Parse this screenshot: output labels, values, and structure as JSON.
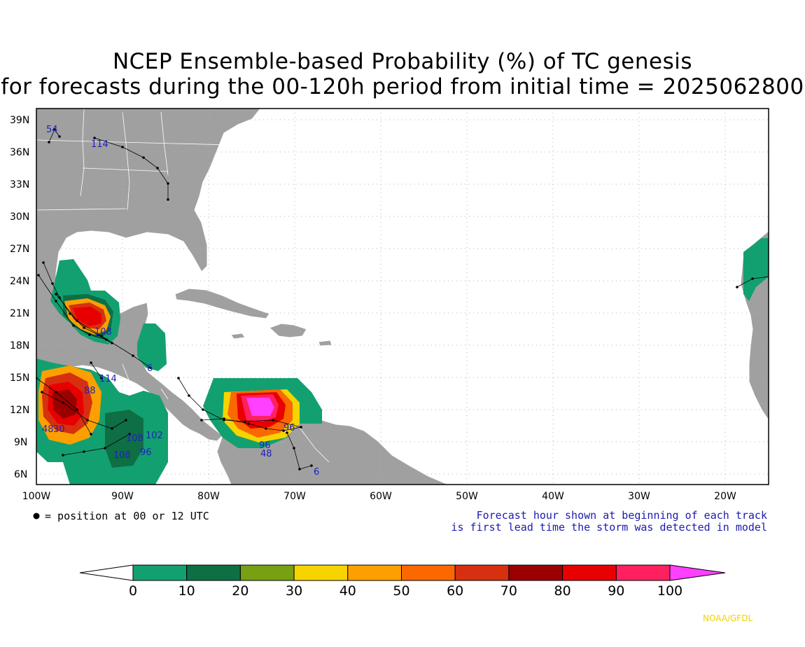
{
  "title": {
    "line1": "NCEP Ensemble-based Probability (%) of TC genesis",
    "line2": "for forecasts during the 00-120h period from initial time = 2025062800"
  },
  "map": {
    "lat_labels": [
      "39N",
      "36N",
      "33N",
      "30N",
      "27N",
      "24N",
      "21N",
      "18N",
      "15N",
      "12N",
      "9N",
      "6N"
    ],
    "lon_labels": [
      "100W",
      "90W",
      "80W",
      "70W",
      "60W",
      "50W",
      "40W",
      "30W",
      "20W"
    ],
    "colors": {
      "land": "#a0a0a0",
      "ocean": "#ffffff",
      "border": "#ffffff",
      "track": "#000000",
      "hour_label": "#2020c0"
    },
    "genesis_areas": [
      {
        "region": "Bay of Campeche / Yucatan",
        "peak_probability_pct": "80-90"
      },
      {
        "region": "Eastern Pacific off southern Mexico",
        "peak_probability_pct": "70-80"
      },
      {
        "region": "Gulf of Honduras / Guatemala Pacific",
        "peak_probability_pct": "10-20"
      },
      {
        "region": "Southern Caribbean off Colombia",
        "peak_probability_pct": "90-100"
      },
      {
        "region": "Off West Africa",
        "peak_probability_pct": "0-10"
      }
    ],
    "hour_labels": [
      "54",
      "114",
      "6",
      "114",
      "48",
      "30",
      "88",
      "108",
      "102",
      "108",
      "96",
      "108",
      "6",
      "96",
      "48",
      "96"
    ]
  },
  "legend": {
    "dot_note": "= position at 00 or 12 UTC",
    "note_line1": "Forecast hour shown at beginning of each track",
    "note_line2": "is first lead time the storm was detected in model"
  },
  "colorbar": {
    "ticks": [
      "0",
      "10",
      "20",
      "30",
      "40",
      "50",
      "60",
      "70",
      "80",
      "90",
      "100"
    ],
    "colors": [
      "#ffffff",
      "#13a070",
      "#0e6f45",
      "#77a012",
      "#f6d400",
      "#fba000",
      "#fb6800",
      "#d73010",
      "#9b0000",
      "#e80000",
      "#ff2060",
      "#ff40ff"
    ]
  },
  "credit": "NOAA/GFDL"
}
